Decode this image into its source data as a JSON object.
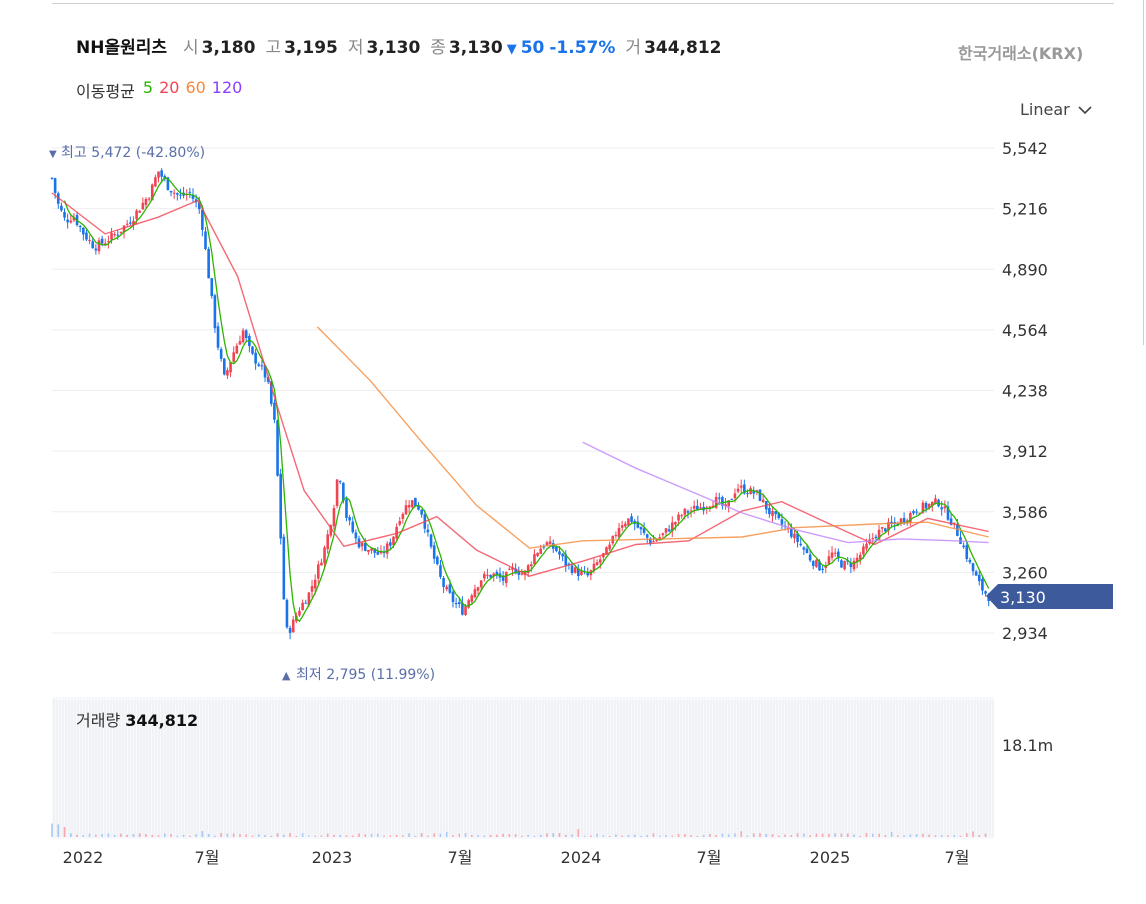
{
  "header": {
    "name": "NH올원리츠",
    "open_label": "시",
    "open": "3,180",
    "high_label": "고",
    "high": "3,195",
    "low_label": "저",
    "low": "3,130",
    "close_label": "종",
    "close": "3,130",
    "change_arrow": "▼",
    "change": "50",
    "change_pct": "-1.57%",
    "volume_label": "거",
    "volume": "344,812",
    "exchange": "한국거래소(KRX)"
  },
  "ma": {
    "label": "이동평균",
    "items": [
      {
        "label": "5",
        "color": "#2db400"
      },
      {
        "label": "20",
        "color": "#f04452"
      },
      {
        "label": "60",
        "color": "#f5893a"
      },
      {
        "label": "120",
        "color": "#8b3dff"
      }
    ]
  },
  "scale": {
    "label": "Linear",
    "icon": "chevron-down-icon"
  },
  "annotations": {
    "high_arrow": "▼",
    "high_text": "최고 5,472 (-42.80%)",
    "low_arrow": "▲",
    "low_text": "최저 2,795 (11.99%)"
  },
  "volume_panel": {
    "label": "거래량",
    "value": "344,812",
    "axis_label": "18.1m"
  },
  "colors": {
    "up": "#f04452",
    "down": "#1a73e8",
    "grid": "#eeeeee",
    "price_tag": "#3d5a9c",
    "annotation": "#5a6fa8"
  },
  "chart_data": {
    "type": "candlestick",
    "y_ticks": [
      "5,542",
      "5,216",
      "4,890",
      "4,564",
      "4,238",
      "3,912",
      "3,586",
      "3,260",
      "2,934"
    ],
    "y_tick_values": [
      5542,
      5216,
      4890,
      4564,
      4238,
      3912,
      3586,
      3260,
      2934
    ],
    "x_ticks": [
      "2022",
      "7월",
      "2023",
      "7월",
      "2024",
      "7월",
      "2025",
      "7월"
    ],
    "last_price_label": "3,130",
    "last_price": 3130,
    "high": 5472,
    "low": 2795,
    "close_path": [
      [
        2022.0,
        5380
      ],
      [
        2022.02,
        5250
      ],
      [
        2022.05,
        5150
      ],
      [
        2022.08,
        5180
      ],
      [
        2022.12,
        5080
      ],
      [
        2022.16,
        5010
      ],
      [
        2022.2,
        5040
      ],
      [
        2022.25,
        5090
      ],
      [
        2022.3,
        5160
      ],
      [
        2022.33,
        5220
      ],
      [
        2022.37,
        5300
      ],
      [
        2022.4,
        5420
      ],
      [
        2022.44,
        5330
      ],
      [
        2022.48,
        5280
      ],
      [
        2022.52,
        5300
      ],
      [
        2022.56,
        5200
      ],
      [
        2022.59,
        4860
      ],
      [
        2022.62,
        4520
      ],
      [
        2022.65,
        4300
      ],
      [
        2022.68,
        4430
      ],
      [
        2022.72,
        4560
      ],
      [
        2022.75,
        4430
      ],
      [
        2022.78,
        4380
      ],
      [
        2022.81,
        4300
      ],
      [
        2022.84,
        4050
      ],
      [
        2022.86,
        3500
      ],
      [
        2022.88,
        2940
      ],
      [
        2022.9,
        2960
      ],
      [
        2022.93,
        3060
      ],
      [
        2022.97,
        3150
      ],
      [
        2023.0,
        3270
      ],
      [
        2023.03,
        3400
      ],
      [
        2023.06,
        3600
      ],
      [
        2023.08,
        3820
      ],
      [
        2023.11,
        3560
      ],
      [
        2023.15,
        3420
      ],
      [
        2023.2,
        3380
      ],
      [
        2023.24,
        3350
      ],
      [
        2023.28,
        3430
      ],
      [
        2023.31,
        3560
      ],
      [
        2023.35,
        3650
      ],
      [
        2023.39,
        3600
      ],
      [
        2023.43,
        3380
      ],
      [
        2023.47,
        3200
      ],
      [
        2023.51,
        3110
      ],
      [
        2023.55,
        3050
      ],
      [
        2023.58,
        3150
      ],
      [
        2023.62,
        3230
      ],
      [
        2023.66,
        3250
      ],
      [
        2023.7,
        3220
      ],
      [
        2023.74,
        3280
      ],
      [
        2023.78,
        3250
      ],
      [
        2023.82,
        3360
      ],
      [
        2023.86,
        3420
      ],
      [
        2023.9,
        3380
      ],
      [
        2023.94,
        3300
      ],
      [
        2023.98,
        3260
      ],
      [
        2024.02,
        3240
      ],
      [
        2024.06,
        3320
      ],
      [
        2024.1,
        3390
      ],
      [
        2024.14,
        3520
      ],
      [
        2024.18,
        3550
      ],
      [
        2024.22,
        3480
      ],
      [
        2024.26,
        3420
      ],
      [
        2024.3,
        3460
      ],
      [
        2024.34,
        3520
      ],
      [
        2024.38,
        3580
      ],
      [
        2024.42,
        3600
      ],
      [
        2024.46,
        3620
      ],
      [
        2024.5,
        3650
      ],
      [
        2024.54,
        3600
      ],
      [
        2024.58,
        3720
      ],
      [
        2024.62,
        3700
      ],
      [
        2024.66,
        3680
      ],
      [
        2024.7,
        3590
      ],
      [
        2024.74,
        3530
      ],
      [
        2024.78,
        3480
      ],
      [
        2024.82,
        3410
      ],
      [
        2024.86,
        3330
      ],
      [
        2024.9,
        3280
      ],
      [
        2024.94,
        3360
      ],
      [
        2024.98,
        3300
      ],
      [
        2025.02,
        3310
      ],
      [
        2025.06,
        3380
      ],
      [
        2025.1,
        3460
      ],
      [
        2025.14,
        3500
      ],
      [
        2025.18,
        3520
      ],
      [
        2025.22,
        3560
      ],
      [
        2025.26,
        3600
      ],
      [
        2025.3,
        3620
      ],
      [
        2025.34,
        3640
      ],
      [
        2025.38,
        3560
      ],
      [
        2025.42,
        3450
      ],
      [
        2025.46,
        3300
      ],
      [
        2025.5,
        3180
      ],
      [
        2025.53,
        3130
      ]
    ],
    "ma_lines": [
      {
        "label": "20",
        "points": [
          [
            2022.0,
            5300
          ],
          [
            2022.2,
            5080
          ],
          [
            2022.4,
            5170
          ],
          [
            2022.55,
            5260
          ],
          [
            2022.7,
            4850
          ],
          [
            2022.85,
            4150
          ],
          [
            2022.95,
            3700
          ],
          [
            2023.1,
            3400
          ],
          [
            2023.3,
            3470
          ],
          [
            2023.45,
            3560
          ],
          [
            2023.6,
            3380
          ],
          [
            2023.8,
            3240
          ],
          [
            2024.0,
            3320
          ],
          [
            2024.2,
            3410
          ],
          [
            2024.4,
            3430
          ],
          [
            2024.6,
            3590
          ],
          [
            2024.75,
            3640
          ],
          [
            2024.9,
            3540
          ],
          [
            2025.1,
            3410
          ],
          [
            2025.3,
            3550
          ],
          [
            2025.53,
            3480
          ]
        ]
      },
      {
        "label": "60",
        "points": [
          [
            2023.0,
            4580
          ],
          [
            2023.2,
            4290
          ],
          [
            2023.4,
            3950
          ],
          [
            2023.6,
            3620
          ],
          [
            2023.8,
            3390
          ],
          [
            2024.0,
            3430
          ],
          [
            2024.3,
            3440
          ],
          [
            2024.6,
            3450
          ],
          [
            2024.8,
            3500
          ],
          [
            2025.1,
            3520
          ],
          [
            2025.3,
            3530
          ],
          [
            2025.53,
            3450
          ]
        ]
      },
      {
        "label": "120",
        "points": [
          [
            2024.0,
            3960
          ],
          [
            2024.2,
            3820
          ],
          [
            2024.4,
            3700
          ],
          [
            2024.6,
            3580
          ],
          [
            2024.8,
            3490
          ],
          [
            2025.0,
            3420
          ],
          [
            2025.2,
            3440
          ],
          [
            2025.4,
            3430
          ],
          [
            2025.53,
            3420
          ]
        ]
      }
    ],
    "volume_axis_max": "18.1m"
  }
}
